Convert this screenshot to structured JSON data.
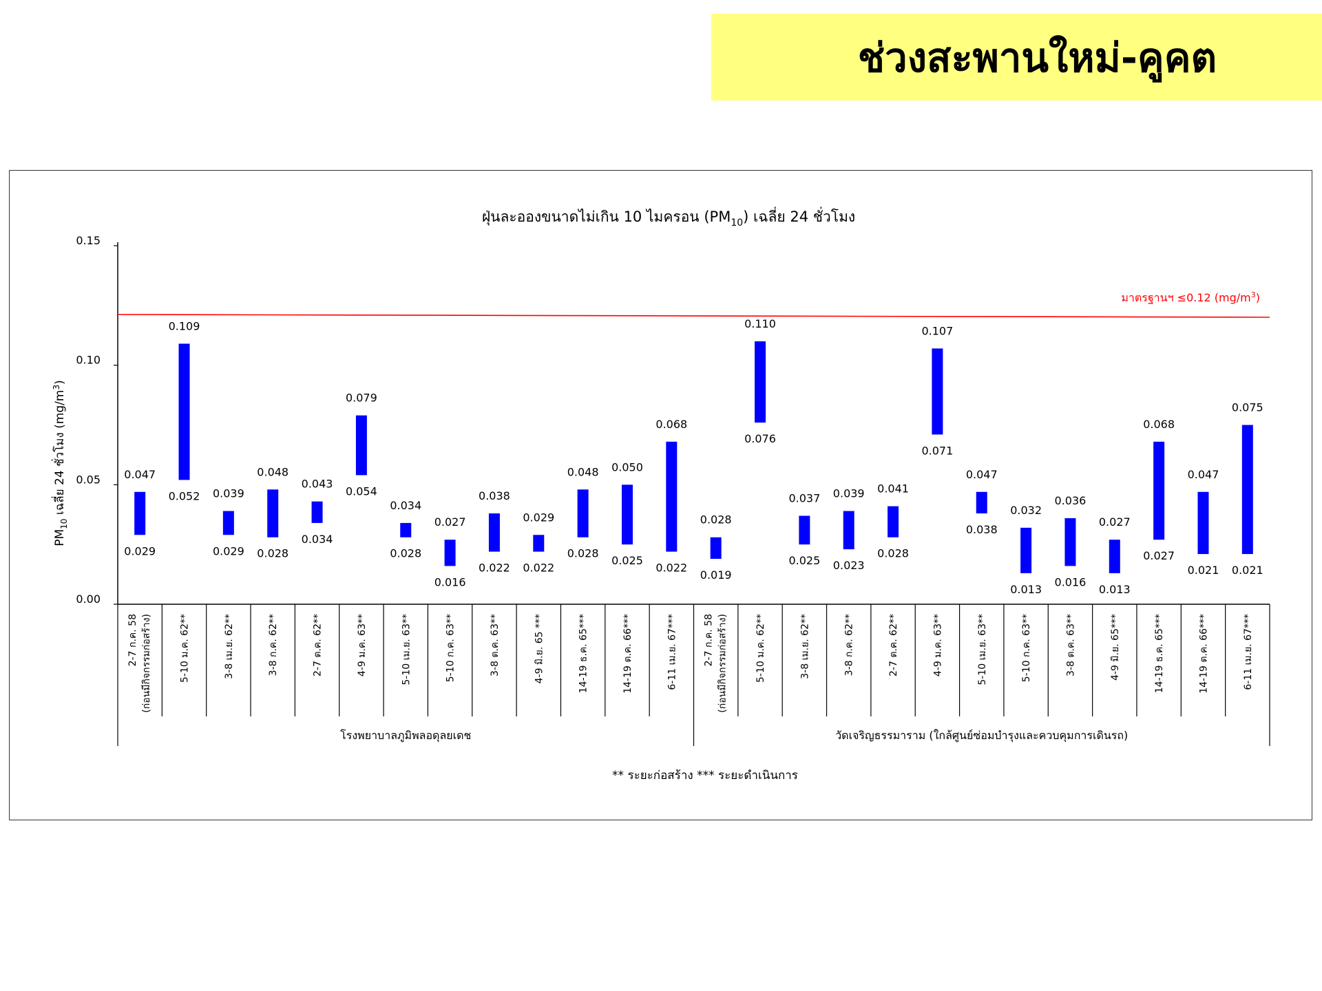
{
  "page": {
    "banner_title": "ช่วงสะพานใหม่-คูคต",
    "banner_color": "#ffff80"
  },
  "chart_data": {
    "type": "bar",
    "subtype": "floating-range",
    "title_main": "ฝุ่นละอองขนาดไม่เกิน  10 ไมครอน (PM",
    "title_sub": "10",
    "title_tail": ") เฉลี่ย 24 ชั่วโมง",
    "ylabel_main": "PM",
    "ylabel_sub": "10",
    "ylabel_tail": " เฉลี่ย 24 ชั่วโมง (mg/m",
    "ylabel_sup": "3",
    "ylabel_end": ")",
    "ylim": [
      0,
      0.15
    ],
    "yticks": [
      "0.00",
      "0.05",
      "0.10",
      "0.15"
    ],
    "ytick_values": [
      0,
      0.05,
      0.1,
      0.15
    ],
    "grid": false,
    "bar_color": "#0000ff",
    "standard": {
      "value": 0.12,
      "label_main": "มาตรฐานฯ ≤0.12 (mg/m",
      "label_sup": "3",
      "label_end": ")",
      "color": "#ff0000"
    },
    "categories": [
      [
        "2-7 ก.ค. 58",
        "(ก่อนมีกิจกรรมก่อสร้าง)"
      ],
      [
        "5-10 ม.ค. 62**"
      ],
      [
        "3-8 เม.ย. 62**"
      ],
      [
        "3-8 ก.ค. 62**"
      ],
      [
        "2-7 ต.ค. 62**"
      ],
      [
        "4-9 ม.ค. 63**"
      ],
      [
        "5-10 เม.ย. 63**"
      ],
      [
        "5-10 ก.ค. 63**"
      ],
      [
        "3-8 ต.ค. 63**"
      ],
      [
        "4-9 มิ.ย. 65 ***"
      ],
      [
        "14-19 ธ.ค. 65***"
      ],
      [
        "14-19 ต.ค. 66***"
      ],
      [
        "6-11 เม.ย. 67***"
      ],
      [
        "2-7 ก.ค. 58",
        "(ก่อนมีกิจกรรมก่อสร้าง)"
      ],
      [
        "5-10 ม.ค. 62**"
      ],
      [
        "3-8 เม.ย. 62**"
      ],
      [
        "3-8 ก.ค. 62**"
      ],
      [
        "2-7 ต.ค. 62**"
      ],
      [
        "4-9 ม.ค. 63**"
      ],
      [
        "5-10 เม.ย. 63**"
      ],
      [
        "5-10 ก.ค. 63**"
      ],
      [
        "3-8 ต.ค. 63**"
      ],
      [
        "4-9 มิ.ย. 65***"
      ],
      [
        "14-19 ธ.ค. 65***"
      ],
      [
        "14-19 ต.ค. 66***"
      ],
      [
        "6-11 เม.ย. 67***"
      ]
    ],
    "highs": [
      0.047,
      0.109,
      0.039,
      0.048,
      0.043,
      0.079,
      0.034,
      0.027,
      0.038,
      0.029,
      0.048,
      0.05,
      0.068,
      0.028,
      0.11,
      0.037,
      0.039,
      0.041,
      0.107,
      0.047,
      0.032,
      0.036,
      0.027,
      0.068,
      0.047,
      0.075
    ],
    "lows": [
      0.029,
      0.052,
      0.029,
      0.028,
      0.034,
      0.054,
      0.028,
      0.016,
      0.022,
      0.022,
      0.028,
      0.025,
      0.022,
      0.019,
      0.076,
      0.025,
      0.023,
      0.028,
      0.071,
      0.038,
      0.013,
      0.016,
      0.013,
      0.027,
      0.021,
      0.021
    ],
    "high_labels": [
      "0.047",
      "0.109",
      "0.039",
      "0.048",
      "0.043",
      "0.079",
      "0.034",
      "0.027",
      "0.038",
      "0.029",
      "0.048",
      "0.050",
      "0.068",
      "0.028",
      "0.110",
      "0.037",
      "0.039",
      "0.041",
      "0.107",
      "0.047",
      "0.032",
      "0.036",
      "0.027",
      "0.068",
      "0.047",
      "0.075"
    ],
    "low_labels": [
      "0.029",
      "0.052",
      "0.029",
      "0.028",
      "0.034",
      "0.054",
      "0.028",
      "0.016",
      "0.022",
      "0.022",
      "0.028",
      "0.025",
      "0.022",
      "0.019",
      "0.076",
      "0.025",
      "0.023",
      "0.028",
      "0.071",
      "0.038",
      "0.013",
      "0.016",
      "0.013",
      "0.027",
      "0.021",
      "0.021"
    ],
    "groups": [
      {
        "name": "โรงพยาบาลภูมิพลอดุลยเดช",
        "start": 0,
        "count": 13
      },
      {
        "name": "วัดเจริญธรรมาราม (ใกล้ศูนย์ซ่อมบำรุงและควบคุมการเดินรถ)",
        "start": 13,
        "count": 13
      }
    ],
    "footnote": "** ระยะก่อสร้าง    *** ระยะดำเนินการ"
  }
}
